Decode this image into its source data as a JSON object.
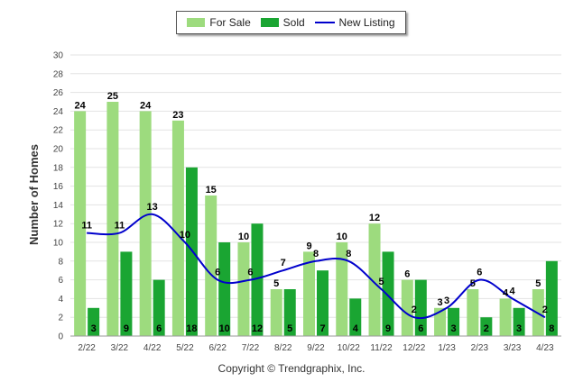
{
  "chart_data": {
    "type": "bar",
    "categories": [
      "2/22",
      "3/22",
      "4/22",
      "5/22",
      "6/22",
      "7/22",
      "8/22",
      "9/22",
      "10/22",
      "11/22",
      "12/22",
      "1/23",
      "2/23",
      "3/23",
      "4/23"
    ],
    "series": [
      {
        "name": "For Sale",
        "type": "bar",
        "color": "#9ddb7e",
        "values": [
          24,
          25,
          24,
          23,
          15,
          10,
          5,
          9,
          10,
          12,
          6,
          3,
          5,
          4,
          5
        ]
      },
      {
        "name": "Sold",
        "type": "bar",
        "color": "#1aa532",
        "values": [
          3,
          9,
          6,
          18,
          10,
          12,
          5,
          7,
          4,
          9,
          6,
          3,
          2,
          3,
          8
        ]
      },
      {
        "name": "New Listing",
        "type": "line",
        "color": "#0000cc",
        "values": [
          11,
          11,
          13,
          10,
          6,
          6,
          7,
          8,
          8,
          5,
          2,
          3,
          6,
          4,
          2
        ]
      }
    ],
    "ylabel": "Number of Homes",
    "ylim": [
      0,
      30
    ],
    "yticks": [
      0,
      2,
      4,
      6,
      8,
      10,
      12,
      14,
      16,
      18,
      20,
      22,
      24,
      26,
      28,
      30
    ],
    "grid": true,
    "legend": "top-center"
  },
  "footer": {
    "copyright": "Copyright © Trendgraphix, Inc."
  }
}
